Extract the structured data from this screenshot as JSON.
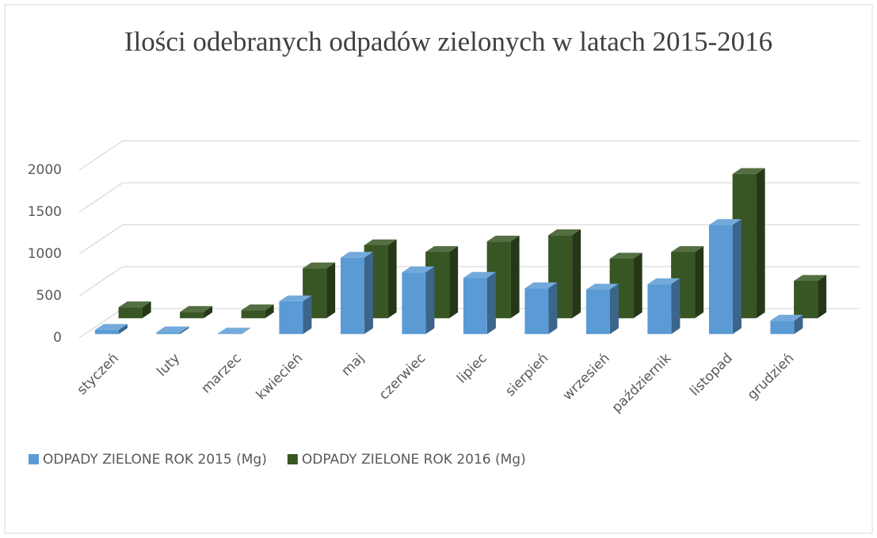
{
  "chart_data": {
    "type": "bar3d",
    "title": "Ilości odebranych odpadów zielonych w latach 2015-2016",
    "categories": [
      "styczeń",
      "luty",
      "marzec",
      "kwiecień",
      "maj",
      "czerwiec",
      "lipiec",
      "sierpień",
      "wrzesień",
      "październik",
      "listopad",
      "grudzień"
    ],
    "series": [
      {
        "name": "ODPADY ZIELONE ROK 2015 (Mg)",
        "color": "#5b9bd5",
        "values": [
          50,
          20,
          5,
          390,
          910,
          735,
          670,
          545,
          530,
          595,
          1300,
          160
        ]
      },
      {
        "name": "ODPADY ZIELONE ROK 2016 (Mg)",
        "color": "#375623",
        "values": [
          130,
          75,
          95,
          595,
          870,
          790,
          915,
          990,
          710,
          790,
          1720,
          445
        ]
      }
    ],
    "ylim": [
      0,
      2000
    ],
    "yticks": [
      0,
      500,
      1000,
      1500,
      2000
    ],
    "grid": true,
    "legend": "bottom"
  }
}
